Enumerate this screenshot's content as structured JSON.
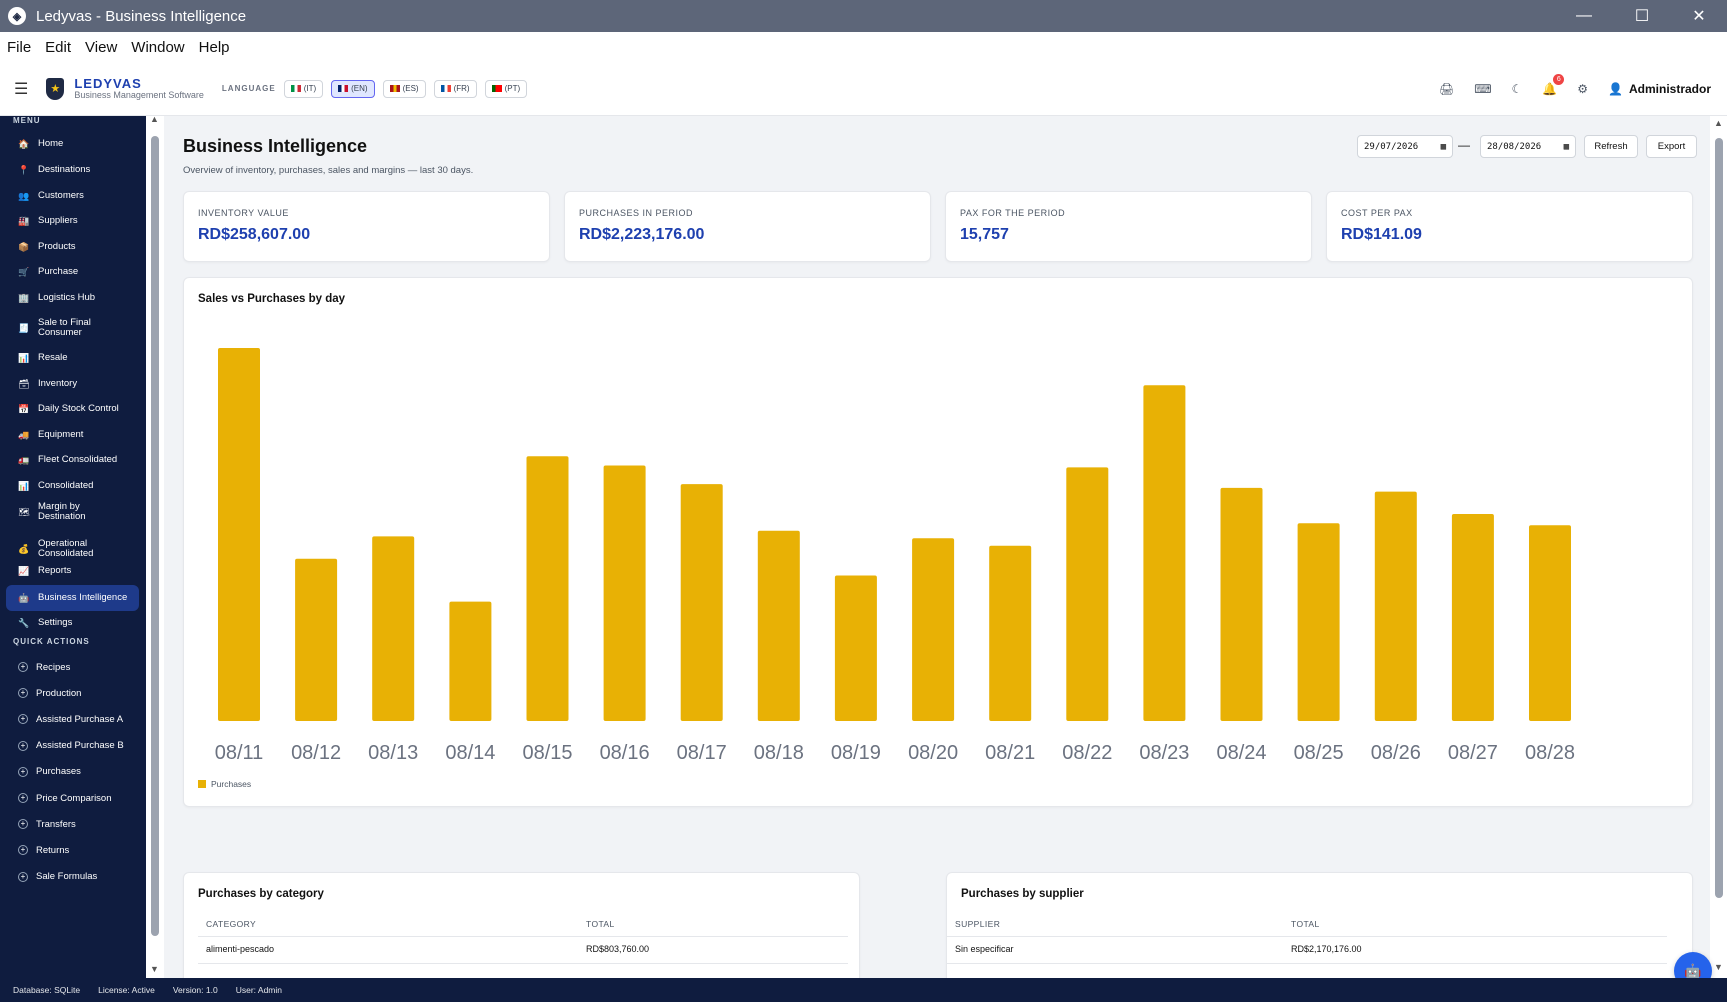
{
  "window": {
    "title": "Ledyvas - Business Intelligence",
    "minimize": "—",
    "maximize": "☐",
    "close": "✕"
  },
  "menubar": {
    "items": [
      "File",
      "Edit",
      "View",
      "Window",
      "Help"
    ]
  },
  "topbar": {
    "brand_name": "LEDYVAS",
    "brand_sub": "Business Management Software",
    "language_label": "LANGUAGE",
    "languages": [
      {
        "label": "(IT)",
        "colors": [
          "#009246",
          "#ffffff",
          "#ce2b37"
        ]
      },
      {
        "label": "(EN)",
        "colors": [
          "#012169",
          "#ffffff",
          "#c8102e"
        ],
        "active": true
      },
      {
        "label": "(ES)",
        "colors": [
          "#aa151b",
          "#f1bf00",
          "#aa151b"
        ]
      },
      {
        "label": "(FR)",
        "colors": [
          "#0055a4",
          "#ffffff",
          "#ef4135"
        ]
      },
      {
        "label": "(PT)",
        "colors": [
          "#006600",
          "#ff0000",
          "#ff0000"
        ]
      }
    ],
    "notification_count": "6",
    "user_name": "Administrador"
  },
  "sidebar": {
    "menu_label": "MENU",
    "items": [
      {
        "label": "Home",
        "icon": "home-icon",
        "glyph": "🏠"
      },
      {
        "label": "Destinations",
        "icon": "pin-icon",
        "glyph": "📍"
      },
      {
        "label": "Customers",
        "icon": "users-icon",
        "glyph": "👥"
      },
      {
        "label": "Suppliers",
        "icon": "factory-icon",
        "glyph": "🏭"
      },
      {
        "label": "Products",
        "icon": "box-icon",
        "glyph": "📦"
      },
      {
        "label": "Purchase",
        "icon": "cart-icon",
        "glyph": "🛒"
      },
      {
        "label": "Logistics Hub",
        "icon": "building-icon",
        "glyph": "🏢"
      },
      {
        "label": "Sale to Final Consumer",
        "icon": "receipt-icon",
        "glyph": "🧾"
      },
      {
        "label": "Resale",
        "icon": "chart-icon",
        "glyph": "📊"
      },
      {
        "label": "Inventory",
        "icon": "stock-icon",
        "glyph": "🗃"
      },
      {
        "label": "Daily Stock Control",
        "icon": "calendar-icon",
        "glyph": "📅"
      },
      {
        "label": "Equipment",
        "icon": "truck-icon",
        "glyph": "🚚"
      },
      {
        "label": "Fleet Consolidated",
        "icon": "fleet-icon",
        "glyph": "🚛"
      },
      {
        "label": "Consolidated",
        "icon": "bar-chart-icon",
        "glyph": "📊"
      },
      {
        "label": "Margin by Destination",
        "icon": "map-icon",
        "glyph": "🗺"
      },
      {
        "label": "Operational Consolidated",
        "icon": "money-bag-icon",
        "glyph": "💰"
      },
      {
        "label": "Reports",
        "icon": "trend-icon",
        "glyph": "📈"
      },
      {
        "label": "Business Intelligence",
        "icon": "robot-icon",
        "glyph": "🤖",
        "active": true
      },
      {
        "label": "Settings",
        "icon": "wrench-icon",
        "glyph": "🔧"
      }
    ],
    "quick_label": "QUICK ACTIONS",
    "quick_actions": [
      "Recipes",
      "Production",
      "Assisted Purchase A",
      "Assisted Purchase B",
      "Purchases",
      "Price Comparison",
      "Transfers",
      "Returns",
      "Sale Formulas"
    ]
  },
  "main": {
    "title": "Business Intelligence",
    "subtitle": "Overview of inventory, purchases, sales and margins — last 30 days.",
    "date_from": "29/07/2026",
    "date_to": "28/08/2026",
    "date_separator": "—",
    "refresh_label": "Refresh",
    "export_label": "Export",
    "kpis": [
      {
        "label": "INVENTORY VALUE",
        "value": "RD$258,607.00"
      },
      {
        "label": "PURCHASES IN PERIOD",
        "value": "RD$2,223,176.00"
      },
      {
        "label": "PAX FOR THE PERIOD",
        "value": "15,757"
      },
      {
        "label": "COST PER PAX",
        "value": "RD$141.09"
      }
    ],
    "chart_title": "Sales vs Purchases by day",
    "purchases_by_category": {
      "title": "Purchases by category",
      "headers": [
        "CATEGORY",
        "TOTAL"
      ],
      "rows": [
        [
          "alimenti-pescado",
          "RD$803,760.00"
        ]
      ]
    },
    "purchases_by_supplier": {
      "title": "Purchases by supplier",
      "headers": [
        "SUPPLIER",
        "TOTAL"
      ],
      "rows": [
        [
          "Sin especificar",
          "RD$2,170,176.00"
        ]
      ]
    }
  },
  "chart_data": {
    "type": "bar",
    "title": "Sales vs Purchases by day",
    "categories": [
      "08/11",
      "08/12",
      "08/13",
      "08/14",
      "08/15",
      "08/16",
      "08/17",
      "08/18",
      "08/19",
      "08/20",
      "08/21",
      "08/22",
      "08/23",
      "08/24",
      "08/25",
      "08/26",
      "08/27",
      "08/28"
    ],
    "series": [
      {
        "name": "Purchases",
        "color": "#e8b105",
        "values": [
          100,
          43.5,
          49.5,
          32,
          71,
          68.5,
          63.5,
          51,
          39,
          49,
          47,
          68,
          90,
          62.5,
          53,
          61.5,
          55.5,
          52.5
        ]
      }
    ],
    "legend": "bottom-left",
    "grid": false
  },
  "statusbar": [
    "Database: SQLite",
    "License: Active",
    "Version: 1.0",
    "User: Admin"
  ]
}
